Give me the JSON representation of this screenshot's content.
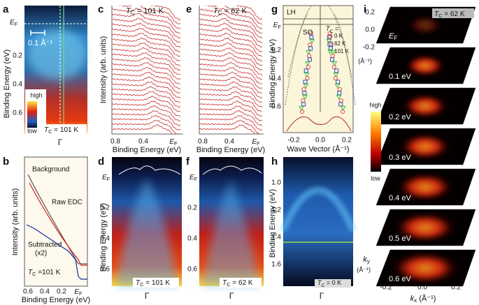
{
  "panel_a": {
    "label": "a",
    "ef": {
      "main": "E",
      "sub": "F"
    },
    "scale": "0.1 Å⁻¹",
    "yticks": [
      "0.2",
      "0.4",
      "0.6"
    ],
    "ylabel": "Binding Energy (eV)",
    "high": "high",
    "low": "low",
    "temp": {
      "main": "T",
      "sub": "C",
      "rest": " = 101 K"
    },
    "gamma": "Γ"
  },
  "panel_b": {
    "label": "b",
    "background": "Background",
    "raw_edc": "Raw EDC",
    "subtracted": "Subtracted",
    "factor": "(x2)",
    "temp": {
      "main": "T",
      "sub": "C",
      "rest": " =101 K"
    },
    "ylabel": "Intensity (arb. units)",
    "xticks": [
      "0.6",
      "0.4",
      "0.2",
      {
        "main": "E",
        "sub": "F"
      }
    ],
    "xlabel": "Binding Energy (eV)"
  },
  "panel_c": {
    "label": "c",
    "temp": {
      "main": "T",
      "sub": "C",
      "rest": " = 101 K"
    },
    "ylabel": "Intensity (arb. units)",
    "xticks": [
      "0.8",
      "0.4",
      {
        "main": "E",
        "sub": "F"
      }
    ],
    "xlabel": "Binding Energy (eV)"
  },
  "panel_e": {
    "label": "e",
    "temp": {
      "main": "T",
      "sub": "C",
      "rest": " = 62 K"
    },
    "xticks": [
      "0.8",
      "0.4",
      {
        "main": "E",
        "sub": "F"
      }
    ],
    "xlabel": "Binding Energy (eV)"
  },
  "panel_g": {
    "label": "g",
    "lh": "LH",
    "ef": {
      "main": "E",
      "sub": "F"
    },
    "so": "SO",
    "legend_title": {
      "main": "T",
      "sub": "C",
      "rest": " ="
    },
    "legend": [
      "0 K",
      "62 K",
      "101 K"
    ],
    "yticks": [
      "0.2",
      "0.4",
      "0.6"
    ],
    "ylabel": "Binding Energy (eV)",
    "xticks": [
      "-0.2",
      "0.0",
      "0.2"
    ],
    "xlabel": "Wave Vector (Å⁻¹)"
  },
  "panel_i": {
    "label": "i",
    "temp": {
      "main": "T",
      "sub": "C",
      "rest": " = 62 K"
    },
    "ky_ticks": [
      "0.2",
      "0.0",
      "-0.2"
    ],
    "ky_unit_top": "(Å⁻¹)",
    "slices": [
      {
        "main": "E",
        "sub": "F"
      },
      "0.1 eV",
      "0.2 eV",
      "0.3 eV",
      "0.4 eV",
      "0.5 eV",
      "0.6 eV"
    ],
    "high": "high",
    "low": "low",
    "ky": {
      "main": "k",
      "sub": "y"
    },
    "ky_unit": "(Å⁻¹)",
    "kx_ticks": [
      "-0.2",
      "0.0",
      "0.2"
    ],
    "kx": {
      "main": "k",
      "sub": "x",
      "rest": " (Å⁻¹)"
    }
  },
  "panel_d": {
    "label": "d",
    "ef": {
      "main": "E",
      "sub": "F"
    },
    "yticks": [
      "0.2",
      "0.4",
      "0.6"
    ],
    "ylabel": "Binding Energy (eV)",
    "temp": {
      "main": "T",
      "sub": "C",
      "rest": " = 101 K"
    },
    "gamma": "Γ"
  },
  "panel_f": {
    "label": "f",
    "ef": {
      "main": "E",
      "sub": "F"
    },
    "yticks": [
      "0.2",
      "0.4",
      "0.6"
    ],
    "temp": {
      "main": "T",
      "sub": "C",
      "rest": " = 62 K"
    },
    "gamma": "Γ"
  },
  "panel_h": {
    "label": "h",
    "yticks": [
      "1.0",
      "1.2",
      "1.4",
      "1.6"
    ],
    "ylabel": "Binding Energy (eV)",
    "temp": {
      "main": "T",
      "sub": "C",
      "rest": " = 0 K"
    },
    "gamma": "Γ"
  }
}
